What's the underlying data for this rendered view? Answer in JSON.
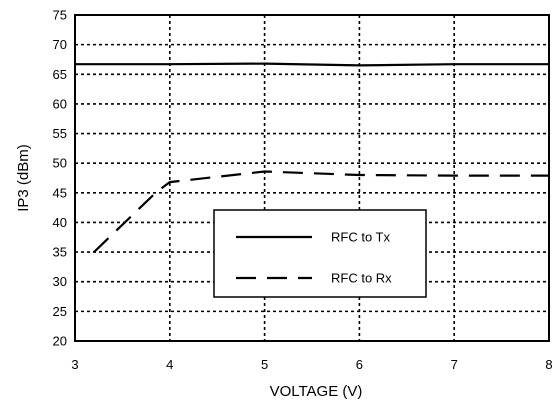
{
  "chart_data": {
    "type": "line",
    "title": "",
    "xlabel": "VOLTAGE (V)",
    "ylabel": "IP3 (dBm)",
    "xlim": [
      3,
      8
    ],
    "ylim": [
      20,
      75
    ],
    "xticks": [
      3,
      4,
      5,
      6,
      7,
      8
    ],
    "yticks": [
      20,
      25,
      30,
      35,
      40,
      45,
      50,
      55,
      60,
      65,
      70,
      75
    ],
    "grid": true,
    "legend_position": "center",
    "series": [
      {
        "name": "RFC to Tx",
        "style": "solid",
        "color": "#000000",
        "x": [
          3.0,
          4.0,
          5.0,
          6.0,
          7.0,
          8.0
        ],
        "y": [
          66.7,
          66.7,
          66.8,
          66.5,
          66.7,
          66.7
        ]
      },
      {
        "name": "RFC to Rx",
        "style": "dashed",
        "color": "#000000",
        "x": [
          3.2,
          3.85,
          4.0,
          5.0,
          6.0,
          7.0,
          8.0
        ],
        "y": [
          35.0,
          45.0,
          46.8,
          48.6,
          48.0,
          47.9,
          47.9
        ]
      }
    ]
  }
}
